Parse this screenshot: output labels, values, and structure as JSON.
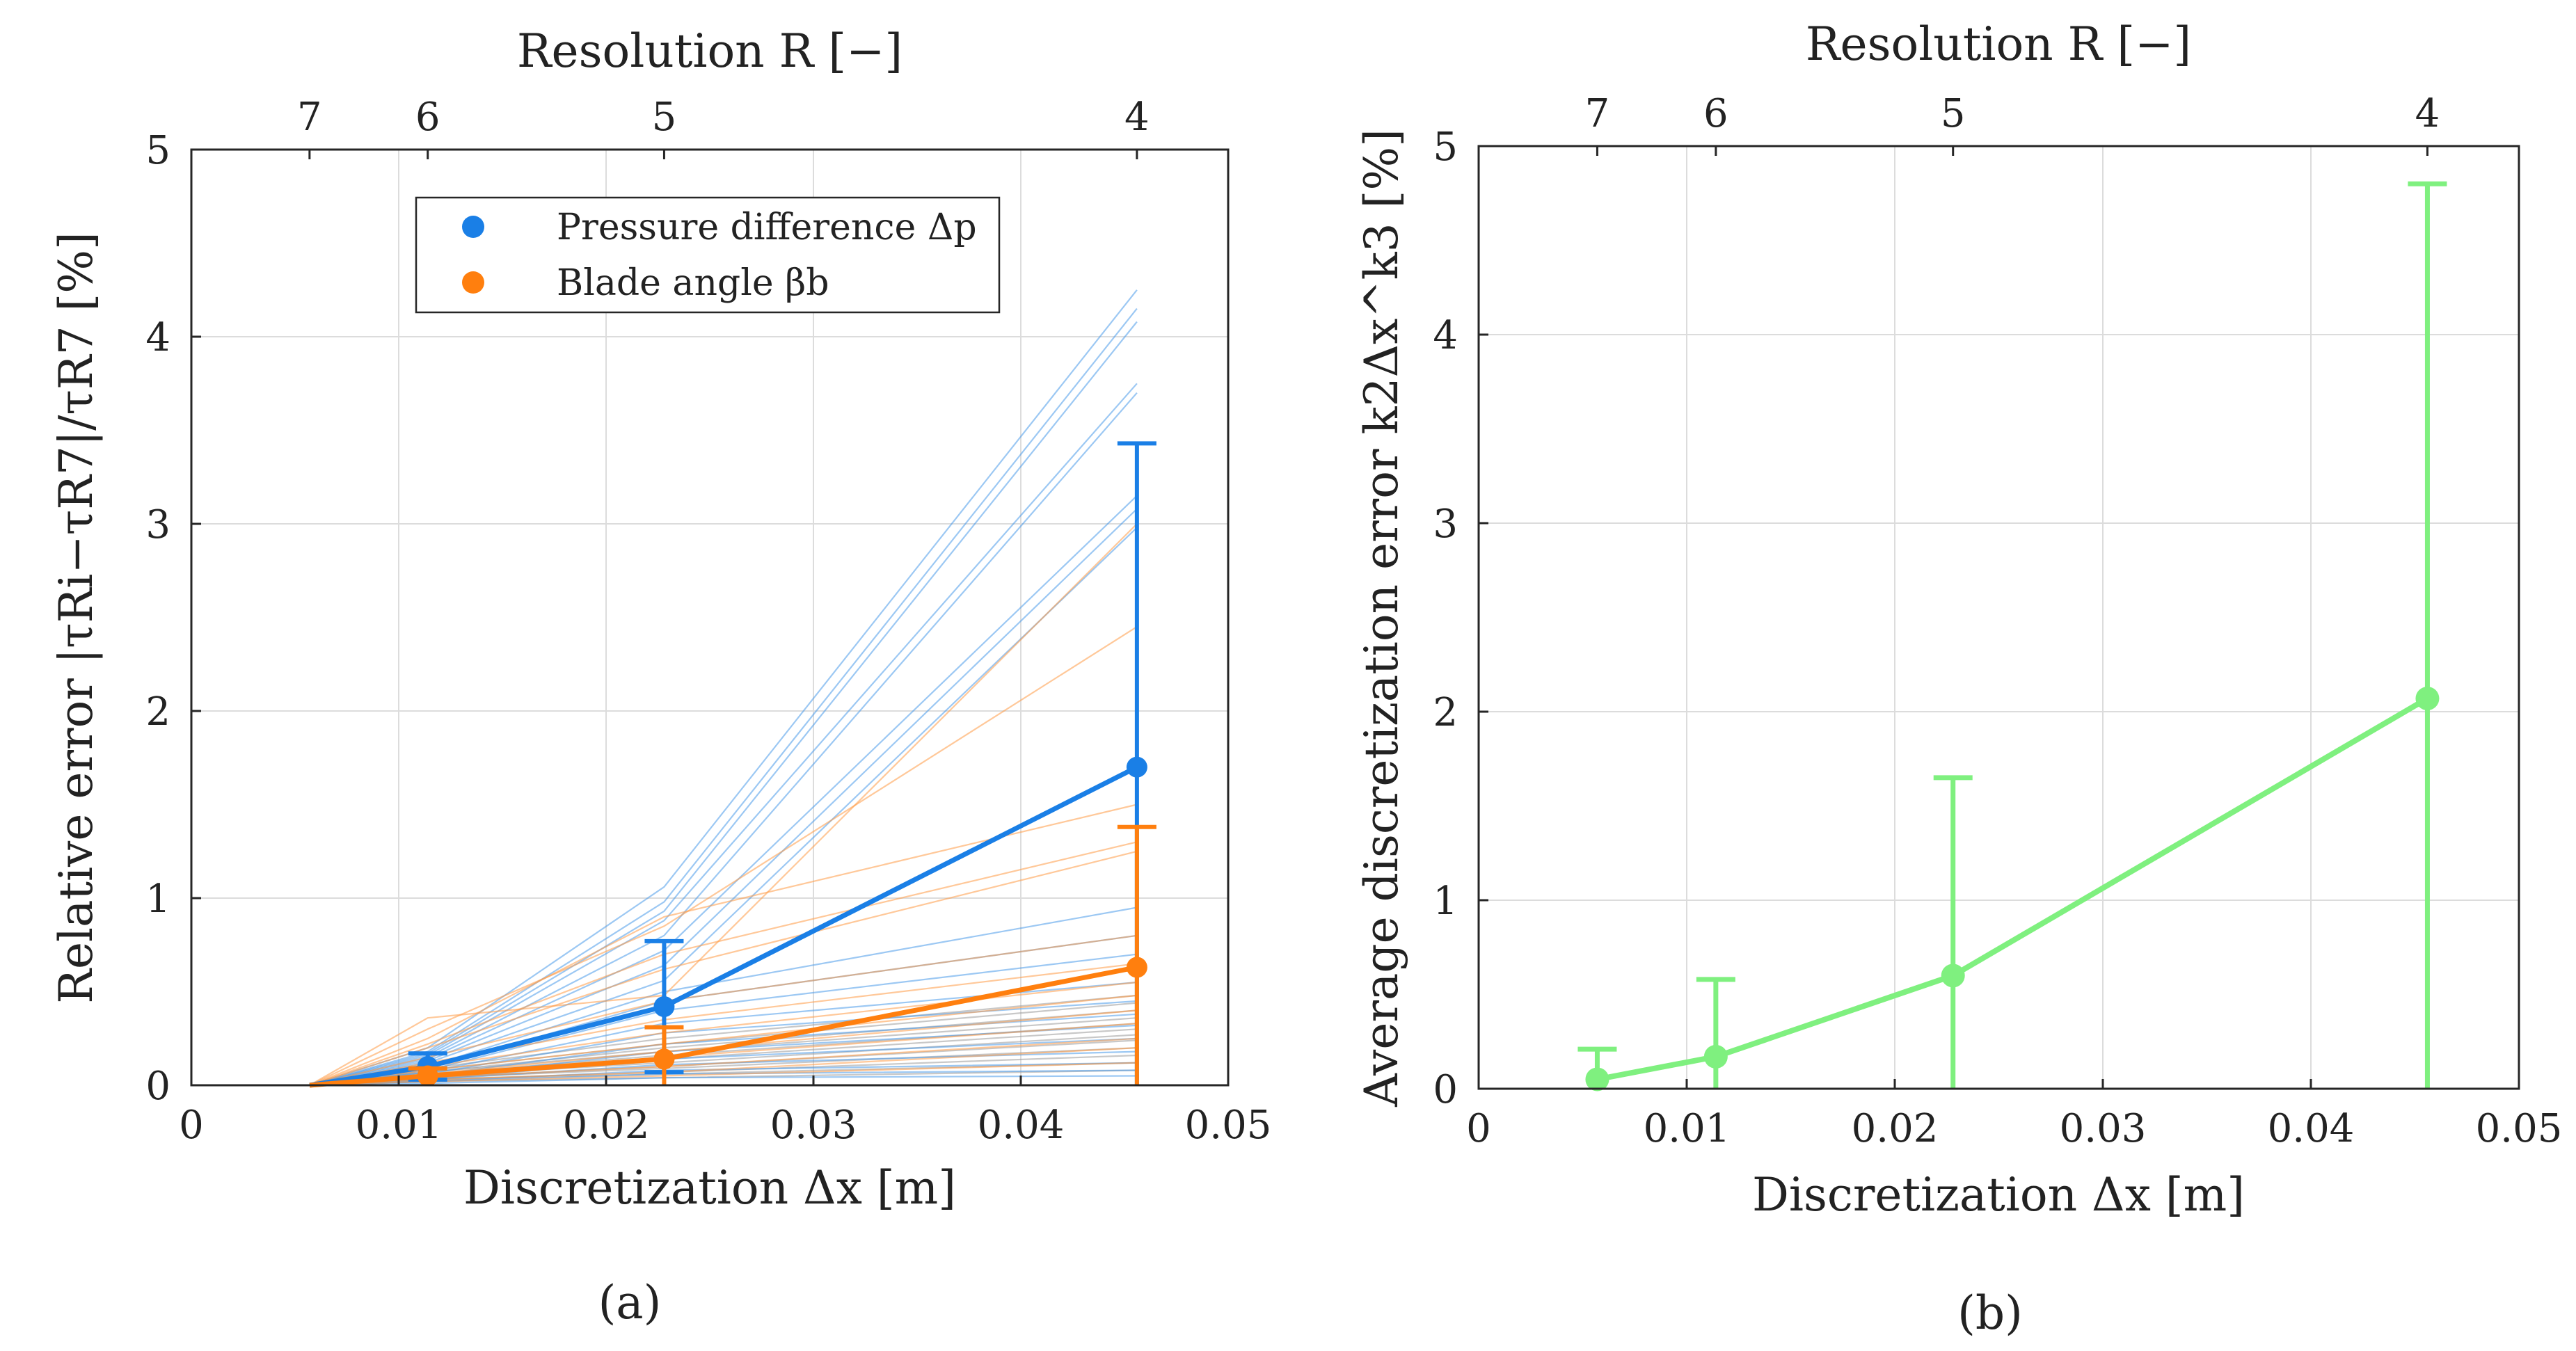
{
  "chart_data": [
    {
      "panel": "(a)",
      "type": "line",
      "title": "",
      "xlabel": "Discretization Δx [m]",
      "ylabel": "Relative error |τRi−τR7|/τR7 [%]",
      "top_axis_label": "Resolution R [−]",
      "top_ticks": [
        {
          "label": "7",
          "x": 0.0057
        },
        {
          "label": "6",
          "x": 0.0114
        },
        {
          "label": "5",
          "x": 0.0228
        },
        {
          "label": "4",
          "x": 0.0456
        }
      ],
      "xlim": [
        0,
        0.05
      ],
      "ylim": [
        0,
        5
      ],
      "xticks": [
        {
          "value": 0,
          "label": "0"
        },
        {
          "value": 0.01,
          "label": "0.01"
        },
        {
          "value": 0.02,
          "label": "0.02"
        },
        {
          "value": 0.03,
          "label": "0.03"
        },
        {
          "value": 0.04,
          "label": "0.04"
        },
        {
          "value": 0.05,
          "label": "0.05"
        }
      ],
      "yticks": [
        {
          "value": 0,
          "label": "0"
        },
        {
          "value": 1,
          "label": "1"
        },
        {
          "value": 2,
          "label": "2"
        },
        {
          "value": 3,
          "label": "3"
        },
        {
          "value": 4,
          "label": "4"
        },
        {
          "value": 5,
          "label": "5"
        }
      ],
      "grid": true,
      "legend": {
        "position": "top-center",
        "entries": [
          {
            "label": "Pressure difference Δp",
            "color": "#1A7FE6"
          },
          {
            "label": "Blade angle βb",
            "color": "#FF7F0E"
          }
        ]
      },
      "x": [
        0.0057,
        0.0114,
        0.0228,
        0.0456
      ],
      "series": [
        {
          "name": "Pressure difference Δp",
          "color": "#1A7FE6",
          "values": [
            0,
            0.1,
            0.42,
            1.7
          ],
          "err_upper": [
            0,
            0.17,
            0.77,
            3.43
          ],
          "err_lower": [
            0,
            0.03,
            0.07,
            0.0
          ]
        },
        {
          "name": "Blade angle βb",
          "color": "#FF7F0E",
          "values": [
            0,
            0.05,
            0.14,
            0.63
          ],
          "err_upper": [
            0,
            0.09,
            0.31,
            1.38
          ],
          "err_lower": [
            0,
            0.0,
            0.0,
            0.0
          ]
        }
      ],
      "individual_runs": {
        "blue": [
          [
            0,
            0.2,
            1.06,
            4.25
          ],
          [
            0,
            0.18,
            0.98,
            4.15
          ],
          [
            0,
            0.17,
            0.93,
            4.08
          ],
          [
            0,
            0.16,
            0.88,
            3.75
          ],
          [
            0,
            0.15,
            0.8,
            3.7
          ],
          [
            0,
            0.14,
            0.72,
            3.15
          ],
          [
            0,
            0.13,
            0.64,
            3.08
          ],
          [
            0,
            0.12,
            0.56,
            2.98
          ],
          [
            0,
            0.1,
            0.5,
            0.95
          ],
          [
            0,
            0.09,
            0.45,
            0.8
          ],
          [
            0,
            0.08,
            0.4,
            0.7
          ],
          [
            0,
            0.07,
            0.33,
            0.55
          ],
          [
            0,
            0.06,
            0.28,
            0.45
          ],
          [
            0,
            0.05,
            0.22,
            0.38
          ],
          [
            0,
            0.04,
            0.18,
            0.32
          ],
          [
            0,
            0.03,
            0.14,
            0.25
          ],
          [
            0,
            0.03,
            0.11,
            0.18
          ],
          [
            0,
            0.02,
            0.08,
            0.12
          ],
          [
            0,
            0.02,
            0.06,
            0.08
          ],
          [
            0,
            0.01,
            0.04,
            0.05
          ]
        ],
        "orange": [
          [
            0,
            0.36,
            0.48,
            3.0
          ],
          [
            0,
            0.3,
            0.85,
            2.45
          ],
          [
            0,
            0.25,
            0.9,
            1.5
          ],
          [
            0,
            0.22,
            0.7,
            1.3
          ],
          [
            0,
            0.2,
            0.62,
            1.25
          ],
          [
            0,
            0.15,
            0.45,
            0.8
          ],
          [
            0,
            0.12,
            0.35,
            0.65
          ],
          [
            0,
            0.1,
            0.28,
            0.55
          ],
          [
            0,
            0.08,
            0.22,
            0.48
          ],
          [
            0,
            0.06,
            0.18,
            0.4
          ],
          [
            0,
            0.05,
            0.15,
            0.33
          ],
          [
            0,
            0.04,
            0.1,
            0.25
          ],
          [
            0,
            0.03,
            0.07,
            0.2
          ],
          [
            0,
            0.02,
            0.05,
            0.12
          ]
        ],
        "gray": [
          [
            0,
            0.09,
            0.25,
            0.48
          ],
          [
            0,
            0.08,
            0.22,
            0.44
          ],
          [
            0,
            0.07,
            0.2,
            0.4
          ],
          [
            0,
            0.07,
            0.18,
            0.36
          ],
          [
            0,
            0.06,
            0.16,
            0.33
          ],
          [
            0,
            0.05,
            0.14,
            0.3
          ],
          [
            0,
            0.05,
            0.12,
            0.27
          ],
          [
            0,
            0.04,
            0.1,
            0.24
          ],
          [
            0,
            0.04,
            0.09,
            0.2
          ],
          [
            0,
            0.03,
            0.07,
            0.16
          ],
          [
            0,
            0.03,
            0.06,
            0.12
          ],
          [
            0,
            0.02,
            0.04,
            0.08
          ]
        ]
      }
    },
    {
      "panel": "(b)",
      "type": "line",
      "title": "",
      "xlabel": "Discretization Δx [m]",
      "ylabel": "Average discretization error k2Δx^k3 [%]",
      "top_axis_label": "Resolution R [−]",
      "top_ticks": [
        {
          "label": "7",
          "x": 0.0057
        },
        {
          "label": "6",
          "x": 0.0114
        },
        {
          "label": "5",
          "x": 0.0228
        },
        {
          "label": "4",
          "x": 0.0456
        }
      ],
      "xlim": [
        0,
        0.05
      ],
      "ylim": [
        0,
        5
      ],
      "xticks": [
        {
          "value": 0,
          "label": "0"
        },
        {
          "value": 0.01,
          "label": "0.01"
        },
        {
          "value": 0.02,
          "label": "0.02"
        },
        {
          "value": 0.03,
          "label": "0.03"
        },
        {
          "value": 0.04,
          "label": "0.04"
        },
        {
          "value": 0.05,
          "label": "0.05"
        }
      ],
      "yticks": [
        {
          "value": 0,
          "label": "0"
        },
        {
          "value": 1,
          "label": "1"
        },
        {
          "value": 2,
          "label": "2"
        },
        {
          "value": 3,
          "label": "3"
        },
        {
          "value": 4,
          "label": "4"
        },
        {
          "value": 5,
          "label": "5"
        }
      ],
      "grid": true,
      "x": [
        0.0057,
        0.0114,
        0.0228,
        0.0456
      ],
      "series": [
        {
          "name": "Average discretization error",
          "color": "#7FF07F",
          "values": [
            0.05,
            0.17,
            0.6,
            2.07
          ],
          "err_upper": [
            0.21,
            0.58,
            1.65,
            4.8
          ],
          "err_lower": [
            0.0,
            0.0,
            0.0,
            0.0
          ]
        }
      ]
    }
  ]
}
